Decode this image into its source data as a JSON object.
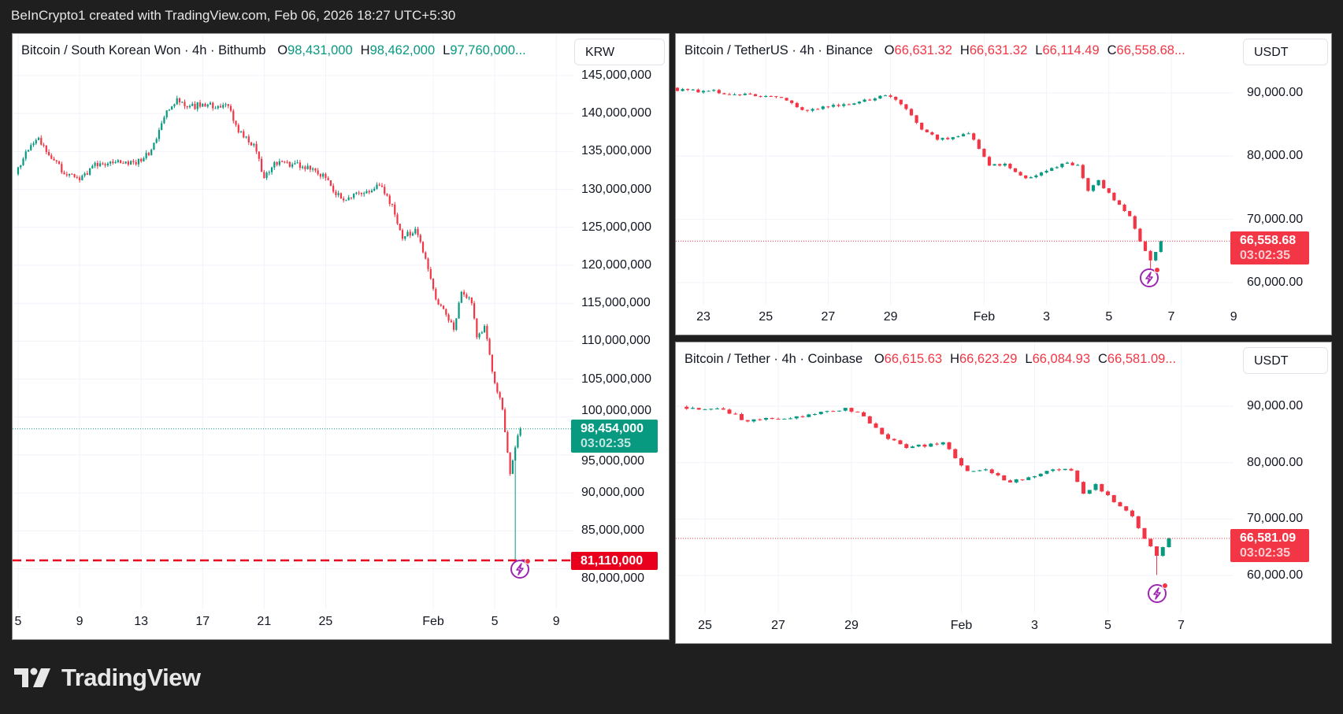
{
  "topbar": {
    "text": "BeInCrypto1 created with TradingView.com, Feb 06, 2026 18:27 UTC+5:30"
  },
  "logo": {
    "text": "TradingView"
  },
  "colors": {
    "up": "#089981",
    "down": "#f23645",
    "alert_line": "#e8001c",
    "bolt": "#9c27b0"
  },
  "panels": [
    {
      "symbol": "Bitcoin / South Korean Won · 4h · Bithumb",
      "ohlc": [
        {
          "k": "O",
          "v": "98,431,000"
        },
        {
          "k": "H",
          "v": "98,462,000"
        },
        {
          "k": "L",
          "v": "97,760,000..."
        }
      ],
      "direction": "up",
      "currency": "KRW",
      "last_price": "98,454,000",
      "countdown": "03:02:35",
      "alert_price_label": "81,110,000"
    },
    {
      "symbol": "Bitcoin / TetherUS · 4h · Binance",
      "ohlc": [
        {
          "k": "O",
          "v": "66,631.32"
        },
        {
          "k": "H",
          "v": "66,631.32"
        },
        {
          "k": "L",
          "v": "66,114.49"
        },
        {
          "k": "C",
          "v": "66,558.68..."
        }
      ],
      "direction": "down",
      "currency": "USDT",
      "last_price": "66,558.68",
      "countdown": "03:02:35"
    },
    {
      "symbol": "Bitcoin / Tether · 4h · Coinbase",
      "ohlc": [
        {
          "k": "O",
          "v": "66,615.63"
        },
        {
          "k": "H",
          "v": "66,623.29"
        },
        {
          "k": "L",
          "v": "66,084.93"
        },
        {
          "k": "C",
          "v": "66,581.09..."
        }
      ],
      "direction": "down",
      "currency": "USDT",
      "last_price": "66,581.09",
      "countdown": "03:02:35"
    }
  ],
  "chart_data": [
    {
      "type": "candlestick",
      "interval": "4h",
      "last": 98454000,
      "alert_level": 81110000,
      "yticks": [
        {
          "v": 145000000,
          "label": "145,000,000"
        },
        {
          "v": 140000000,
          "label": "140,000,000"
        },
        {
          "v": 135000000,
          "label": "135,000,000"
        },
        {
          "v": 130000000,
          "label": "130,000,000"
        },
        {
          "v": 125000000,
          "label": "125,000,000"
        },
        {
          "v": 120000000,
          "label": "120,000,000"
        },
        {
          "v": 115000000,
          "label": "115,000,000"
        },
        {
          "v": 110000000,
          "label": "110,000,000"
        },
        {
          "v": 105000000,
          "label": "105,000,000"
        },
        {
          "v": 100000000,
          "label": "100,000,000"
        },
        {
          "v": 95000000,
          "label": "95,000,000"
        },
        {
          "v": 90000000,
          "label": "90,000,000"
        },
        {
          "v": 85000000,
          "label": "85,000,000"
        },
        {
          "v": 80000000,
          "label": "80,000,000"
        }
      ],
      "xticks": [
        {
          "t": "2026-01-05",
          "label": "5"
        },
        {
          "t": "2026-01-09",
          "label": "9"
        },
        {
          "t": "2026-01-13",
          "label": "13"
        },
        {
          "t": "2026-01-17",
          "label": "17"
        },
        {
          "t": "2026-01-21",
          "label": "21"
        },
        {
          "t": "2026-01-25",
          "label": "25"
        },
        {
          "t": "2026-02-01",
          "label": "Feb"
        },
        {
          "t": "2026-02-05",
          "label": "5"
        },
        {
          "t": "2026-02-09",
          "label": "9"
        }
      ],
      "path": [
        {
          "t": "2026-01-04T20:00",
          "v": 132000000
        },
        {
          "t": "2026-01-05T12:00",
          "v": 135000000
        },
        {
          "t": "2026-01-06T08:00",
          "v": 136800000
        },
        {
          "t": "2026-01-08T00:00",
          "v": 132000000
        },
        {
          "t": "2026-01-09T00:00",
          "v": 131200000
        },
        {
          "t": "2026-01-10T00:00",
          "v": 133500000
        },
        {
          "t": "2026-01-12T12:00",
          "v": 133600000
        },
        {
          "t": "2026-01-13T12:00",
          "v": 134500000
        },
        {
          "t": "2026-01-14T12:00",
          "v": 139500000
        },
        {
          "t": "2026-01-15T08:00",
          "v": 142000000
        },
        {
          "t": "2026-01-16T04:00",
          "v": 141000000
        },
        {
          "t": "2026-01-18T16:00",
          "v": 141000000
        },
        {
          "t": "2026-01-19T08:00",
          "v": 137500000
        },
        {
          "t": "2026-01-20T08:00",
          "v": 136000000
        },
        {
          "t": "2026-01-21T00:00",
          "v": 131500000
        },
        {
          "t": "2026-01-21T16:00",
          "v": 133600000
        },
        {
          "t": "2026-01-23T12:00",
          "v": 133000000
        },
        {
          "t": "2026-01-25T00:00",
          "v": 131500000
        },
        {
          "t": "2026-01-26T00:00",
          "v": 128800000
        },
        {
          "t": "2026-01-27T12:00",
          "v": 129500000
        },
        {
          "t": "2026-01-28T12:00",
          "v": 130500000
        },
        {
          "t": "2026-01-29T08:00",
          "v": 128000000
        },
        {
          "t": "2026-01-30T00:00",
          "v": 123500000
        },
        {
          "t": "2026-01-30T20:00",
          "v": 124800000
        },
        {
          "t": "2026-01-31T16:00",
          "v": 119500000
        },
        {
          "t": "2026-02-01T04:00",
          "v": 115500000
        },
        {
          "t": "2026-02-01T20:00",
          "v": 113500000
        },
        {
          "t": "2026-02-02T08:00",
          "v": 111500000
        },
        {
          "t": "2026-02-02T20:00",
          "v": 116500000
        },
        {
          "t": "2026-02-03T12:00",
          "v": 115000000
        },
        {
          "t": "2026-02-03T20:00",
          "v": 110500000
        },
        {
          "t": "2026-02-04T08:00",
          "v": 112000000
        },
        {
          "t": "2026-02-04T20:00",
          "v": 106000000
        },
        {
          "t": "2026-02-05T12:00",
          "v": 101000000
        },
        {
          "t": "2026-02-06T00:00",
          "v": 92500000
        },
        {
          "t": "2026-02-06T08:00",
          "v": 96000000,
          "low": 81110000
        },
        {
          "t": "2026-02-06T16:00",
          "v": 98454000
        }
      ]
    },
    {
      "type": "candlestick",
      "interval": "4h",
      "last": 66558.68,
      "yticks": [
        {
          "v": 90000,
          "label": "90,000.00"
        },
        {
          "v": 80000,
          "label": "80,000.00"
        },
        {
          "v": 70000,
          "label": "70,000.00"
        },
        {
          "v": 60000,
          "label": "60,000.00"
        }
      ],
      "xticks": [
        {
          "t": "2026-01-23",
          "label": "23"
        },
        {
          "t": "2026-01-25",
          "label": "25"
        },
        {
          "t": "2026-01-27",
          "label": "27"
        },
        {
          "t": "2026-01-29",
          "label": "29"
        },
        {
          "t": "2026-02-01",
          "label": "Feb"
        },
        {
          "t": "2026-02-03",
          "label": "3"
        },
        {
          "t": "2026-02-05",
          "label": "5"
        },
        {
          "t": "2026-02-07",
          "label": "7"
        },
        {
          "t": "2026-02-09",
          "label": "9"
        }
      ],
      "path": [
        {
          "t": "2026-01-20T12:00",
          "v": 90800
        },
        {
          "t": "2026-01-22T12:00",
          "v": 90500
        },
        {
          "t": "2026-01-24T12:00",
          "v": 89800
        },
        {
          "t": "2026-01-25T16:00",
          "v": 88800
        },
        {
          "t": "2026-01-26T04:00",
          "v": 87300
        },
        {
          "t": "2026-01-27T12:00",
          "v": 88200
        },
        {
          "t": "2026-01-28T20:00",
          "v": 89600
        },
        {
          "t": "2026-01-29T08:00",
          "v": 88200
        },
        {
          "t": "2026-01-30T00:00",
          "v": 84200
        },
        {
          "t": "2026-01-30T12:00",
          "v": 82600
        },
        {
          "t": "2026-01-31T12:00",
          "v": 83600
        },
        {
          "t": "2026-02-01T04:00",
          "v": 78500
        },
        {
          "t": "2026-02-01T16:00",
          "v": 78800
        },
        {
          "t": "2026-02-02T08:00",
          "v": 76500
        },
        {
          "t": "2026-02-02T20:00",
          "v": 77400
        },
        {
          "t": "2026-02-03T12:00",
          "v": 78800
        },
        {
          "t": "2026-02-04T00:00",
          "v": 78600
        },
        {
          "t": "2026-02-04T08:00",
          "v": 74500
        },
        {
          "t": "2026-02-04T16:00",
          "v": 76200
        },
        {
          "t": "2026-02-05T04:00",
          "v": 73000
        },
        {
          "t": "2026-02-05T16:00",
          "v": 70500
        },
        {
          "t": "2026-02-06T00:00",
          "v": 66500
        },
        {
          "t": "2026-02-06T08:00",
          "v": 63500,
          "low": 60100
        },
        {
          "t": "2026-02-06T16:00",
          "v": 66558.68
        }
      ]
    },
    {
      "type": "candlestick",
      "interval": "4h",
      "last": 66581.09,
      "yticks": [
        {
          "v": 90000,
          "label": "90,000.00"
        },
        {
          "v": 80000,
          "label": "80,000.00"
        },
        {
          "v": 70000,
          "label": "70,000.00"
        },
        {
          "v": 60000,
          "label": "60,000.00"
        }
      ],
      "xticks": [
        {
          "t": "2026-01-25",
          "label": "25"
        },
        {
          "t": "2026-01-27",
          "label": "27"
        },
        {
          "t": "2026-01-29",
          "label": "29"
        },
        {
          "t": "2026-02-01",
          "label": "Feb"
        },
        {
          "t": "2026-02-03",
          "label": "3"
        },
        {
          "t": "2026-02-05",
          "label": "5"
        },
        {
          "t": "2026-02-07",
          "label": "7"
        }
      ],
      "path": [
        {
          "t": "2026-01-24T08:00",
          "v": 89900
        },
        {
          "t": "2026-01-25T12:00",
          "v": 89400
        },
        {
          "t": "2026-01-26T04:00",
          "v": 87300
        },
        {
          "t": "2026-01-27T12:00",
          "v": 88200
        },
        {
          "t": "2026-01-28T20:00",
          "v": 89700
        },
        {
          "t": "2026-01-29T08:00",
          "v": 88200
        },
        {
          "t": "2026-01-30T00:00",
          "v": 84200
        },
        {
          "t": "2026-01-30T12:00",
          "v": 82600
        },
        {
          "t": "2026-01-31T12:00",
          "v": 83600
        },
        {
          "t": "2026-02-01T04:00",
          "v": 78500
        },
        {
          "t": "2026-02-01T16:00",
          "v": 78800
        },
        {
          "t": "2026-02-02T08:00",
          "v": 76500
        },
        {
          "t": "2026-02-02T20:00",
          "v": 77400
        },
        {
          "t": "2026-02-03T12:00",
          "v": 78800
        },
        {
          "t": "2026-02-04T00:00",
          "v": 78600
        },
        {
          "t": "2026-02-04T08:00",
          "v": 74500
        },
        {
          "t": "2026-02-04T16:00",
          "v": 76200
        },
        {
          "t": "2026-02-05T04:00",
          "v": 73000
        },
        {
          "t": "2026-02-05T16:00",
          "v": 70500
        },
        {
          "t": "2026-02-06T00:00",
          "v": 66500
        },
        {
          "t": "2026-02-06T08:00",
          "v": 63500,
          "low": 60100
        },
        {
          "t": "2026-02-06T16:00",
          "v": 66581.09
        }
      ]
    }
  ]
}
